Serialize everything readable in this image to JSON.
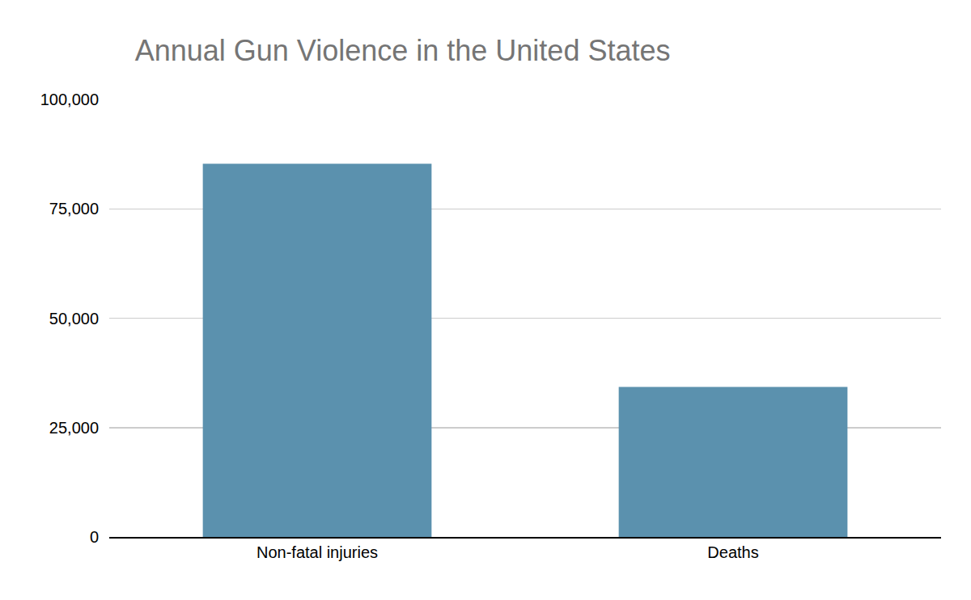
{
  "chart_data": {
    "type": "bar",
    "title": "Annual Gun Violence in the United States",
    "categories": [
      "Non-fatal injuries",
      "Deaths"
    ],
    "values": [
      85300,
      34300
    ],
    "color": "#5b91ae",
    "ylim": [
      0,
      100000
    ],
    "yticks": [
      0,
      {
        "value": 25000,
        "label": "25,000"
      },
      {
        "value": 50000,
        "label": "50,000"
      },
      {
        "value": 75000,
        "label": "75,000"
      },
      {
        "value": 100000,
        "label": "100,000"
      }
    ],
    "grid": true
  }
}
